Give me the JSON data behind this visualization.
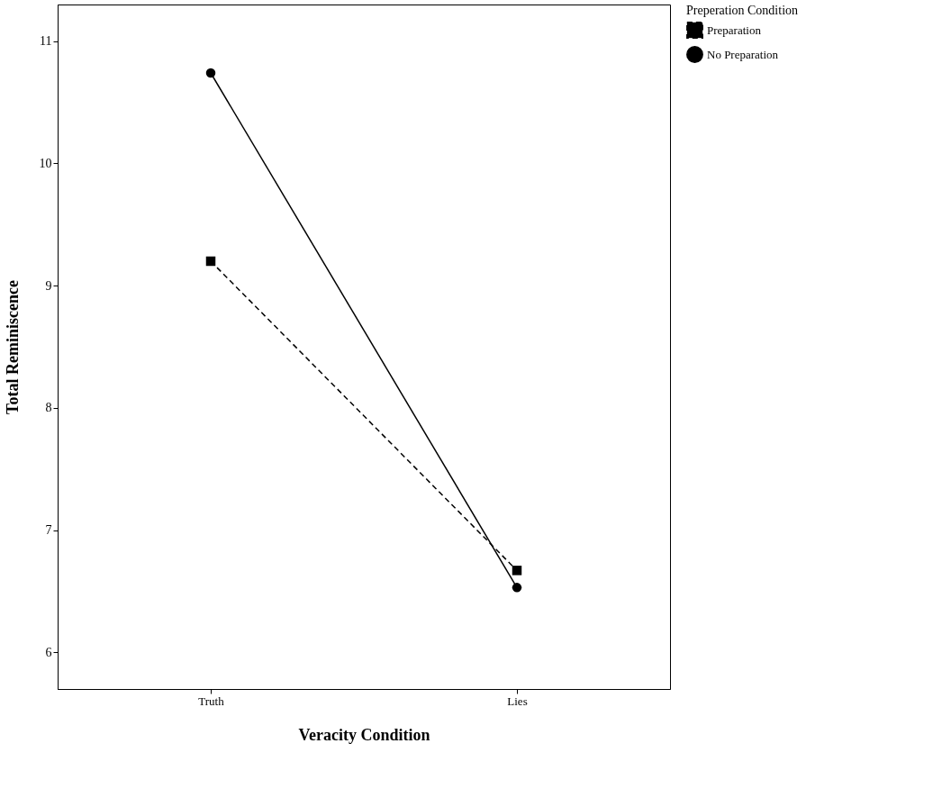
{
  "chart_data": {
    "type": "line",
    "xlabel": "Veracity Condition",
    "ylabel": "Total Reminiscence",
    "legend_title": "Preperation Condition",
    "categories": [
      "Truth",
      "Lies"
    ],
    "series": [
      {
        "name": "Preparation",
        "color": "#000000",
        "values": [
          9.2,
          6.67
        ],
        "line_style": "dashed",
        "marker": "square"
      },
      {
        "name": "No Preparation",
        "color": "#000000",
        "values": [
          10.74,
          6.53
        ],
        "line_style": "solid",
        "marker": "circle"
      }
    ],
    "ylim": [
      5.7,
      11.3
    ],
    "yticks": [
      6,
      7,
      8,
      9,
      10,
      11
    ],
    "grid": false,
    "legend": "top right"
  }
}
